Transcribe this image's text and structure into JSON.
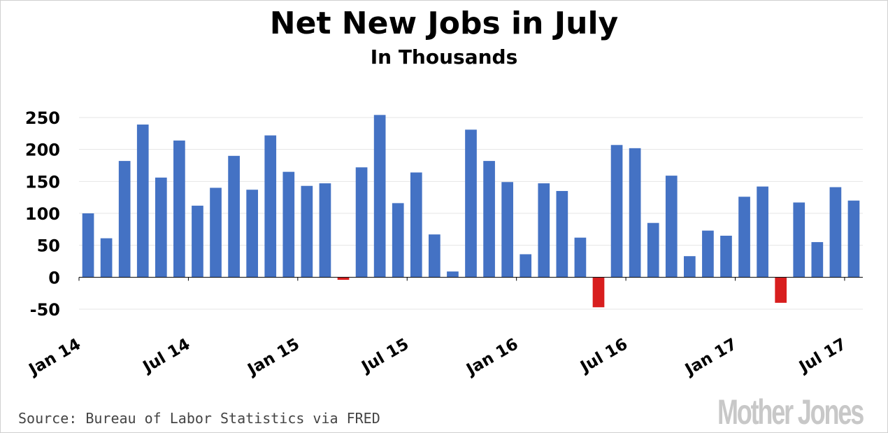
{
  "title": "Net New Jobs in July",
  "subtitle": "In Thousands",
  "source": "Source: Bureau of Labor Statistics via FRED",
  "logo": "Mother Jones",
  "colors": {
    "positive": "#4472c4",
    "negative": "#d81e1e",
    "grid": "#e6e6e6",
    "axis": "#000000"
  },
  "chart_data": {
    "type": "bar",
    "categories": [
      "Jan 14",
      "Feb 14",
      "Mar 14",
      "Apr 14",
      "May 14",
      "Jun 14",
      "Jul 14",
      "Aug 14",
      "Sep 14",
      "Oct 14",
      "Nov 14",
      "Dec 14",
      "Jan 15",
      "Feb 15",
      "Mar 15",
      "Apr 15",
      "May 15",
      "Jun 15",
      "Jul 15",
      "Aug 15",
      "Sep 15",
      "Oct 15",
      "Nov 15",
      "Dec 15",
      "Jan 16",
      "Feb 16",
      "Mar 16",
      "Apr 16",
      "May 16",
      "Jun 16",
      "Jul 16",
      "Aug 16",
      "Sep 16",
      "Oct 16",
      "Nov 16",
      "Dec 16",
      "Jan 17",
      "Feb 17",
      "Mar 17",
      "Apr 17",
      "May 17",
      "Jun 17",
      "Jul 17"
    ],
    "values": [
      100,
      61,
      182,
      239,
      156,
      214,
      112,
      140,
      190,
      137,
      222,
      165,
      143,
      147,
      -4,
      172,
      254,
      116,
      164,
      67,
      9,
      231,
      182,
      149,
      36,
      147,
      135,
      62,
      -47,
      207,
      202,
      85,
      159,
      33,
      73,
      65,
      126,
      142,
      -40,
      117,
      55,
      141,
      120
    ],
    "tick_labels": [
      "Jan 14",
      "Jul 14",
      "Jan 15",
      "Jul 15",
      "Jan 16",
      "Jul 16",
      "Jan 17",
      "Jul 17"
    ],
    "yticks": [
      250,
      200,
      150,
      100,
      50,
      0,
      -50
    ],
    "ylim": [
      -50,
      250
    ],
    "grid": true,
    "xlabel": "",
    "ylabel": ""
  }
}
